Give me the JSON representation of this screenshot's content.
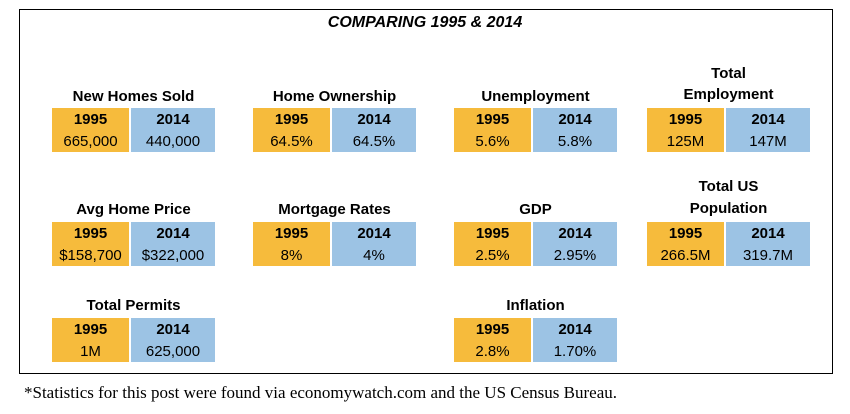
{
  "title": "COMPARING 1995 & 2014",
  "year_a": "1995",
  "year_b": "2014",
  "stats": {
    "new_homes_sold": {
      "label": "New Homes Sold",
      "v1995": "665,000",
      "v2014": "440,000"
    },
    "home_ownership": {
      "label": "Home Ownership",
      "v1995": "64.5%",
      "v2014": "64.5%"
    },
    "unemployment": {
      "label": "Unemployment",
      "v1995": "5.6%",
      "v2014": "5.8%"
    },
    "total_employment": {
      "label_line1": "Total",
      "label_line2": "Employment",
      "v1995": "125M",
      "v2014": "147M"
    },
    "avg_home_price": {
      "label": "Avg Home Price",
      "v1995": "$158,700",
      "v2014": "$322,000"
    },
    "mortgage_rates": {
      "label": "Mortgage Rates",
      "v1995": "8%",
      "v2014": "4%"
    },
    "gdp": {
      "label": "GDP",
      "v1995": "2.5%",
      "v2014": "2.95%"
    },
    "total_us_population": {
      "label_line1": "Total US",
      "label_line2": "Population",
      "v1995": "266.5M",
      "v2014": "319.7M"
    },
    "total_permits": {
      "label": "Total Permits",
      "v1995": "1M",
      "v2014": "625,000"
    },
    "inflation": {
      "label": "Inflation",
      "v1995": "2.8%",
      "v2014": "1.70%"
    }
  },
  "footnote": "*Statistics for this post were found via economywatch.com and the US Census Bureau."
}
